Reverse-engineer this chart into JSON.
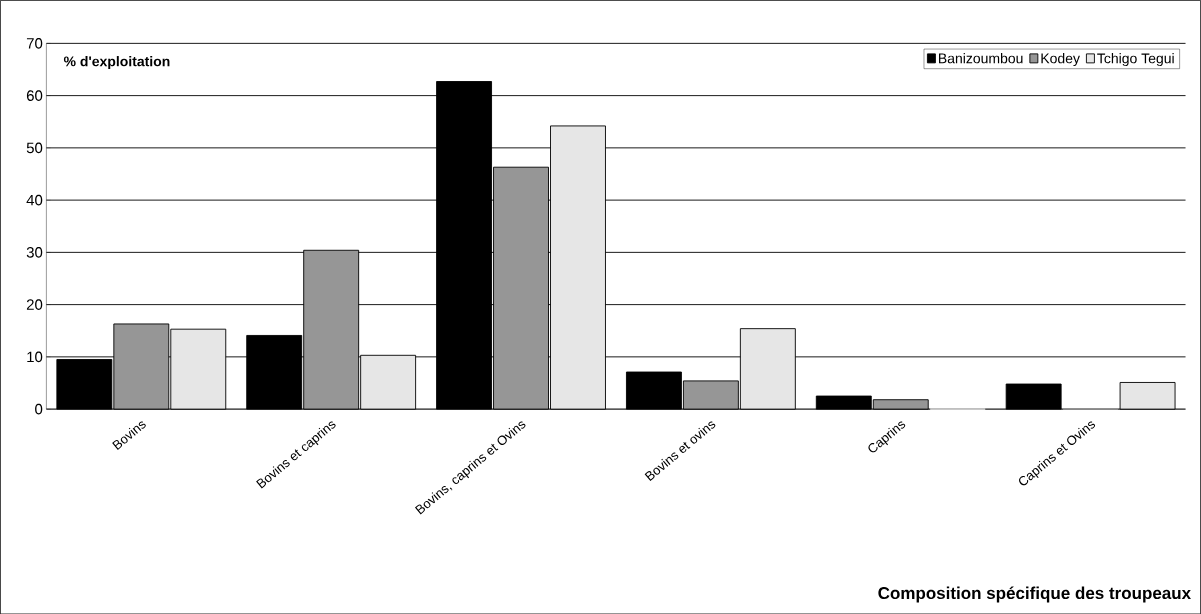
{
  "chart_data": {
    "type": "bar",
    "xlabel": "Composition spécifique des troupeaux",
    "ylabel": "% d'exploitation",
    "categories": [
      "Bovins",
      "Bovins et caprins",
      "Bovins, caprins et Ovins",
      "Bovins et ovins",
      "Caprins",
      "Caprins et Ovins"
    ],
    "series": [
      {
        "name": "Banizoumbou",
        "color": "#000000",
        "values": [
          9.5,
          14.1,
          62.7,
          7.1,
          2.5,
          4.8
        ]
      },
      {
        "name": "Kodey",
        "color": "#969696",
        "values": [
          16.3,
          30.4,
          46.3,
          5.4,
          1.8,
          0
        ]
      },
      {
        "name": "Tchigo Tegui",
        "color": "#e6e6e6",
        "values": [
          15.3,
          10.3,
          54.2,
          15.4,
          0,
          5.1
        ]
      }
    ],
    "ylim": [
      0,
      70
    ],
    "yticks": [
      0,
      10,
      20,
      30,
      40,
      50,
      60,
      70
    ],
    "grid": "y",
    "legend": "top right"
  }
}
